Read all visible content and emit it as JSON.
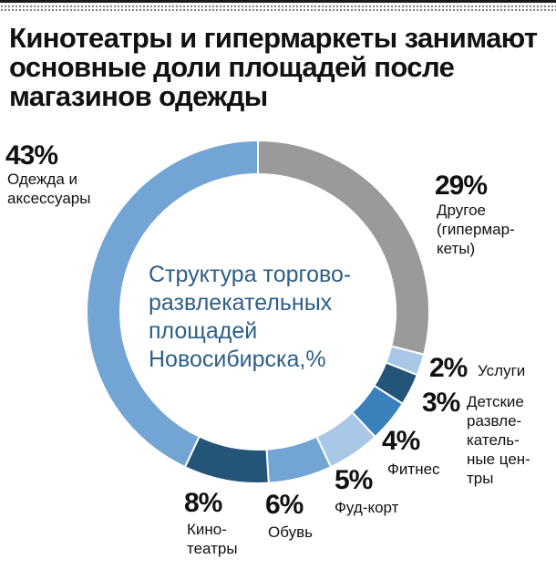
{
  "title": "Кинотеатры и гипермаркеты занимают основные доли площадей после магазинов одежды",
  "chart_data": {
    "type": "pie",
    "variant": "donut",
    "start": "top, clockwise",
    "center_text": [
      "Структура торгово-",
      "развлекательных",
      "площадей",
      "Новосибирска,%"
    ],
    "slices": [
      {
        "name": "Другое (гипермаркеты)",
        "value": 29,
        "pct_label": "29%",
        "label_lines": [
          "Другое",
          "(гипермар-",
          "кеты)"
        ],
        "color": "#9a9a9a"
      },
      {
        "name": "Услуги",
        "value": 2,
        "pct_label": "2%",
        "label_lines": [
          "Услуги"
        ],
        "color": "#a9c7e6"
      },
      {
        "name": "Детские развлекательные центры",
        "value": 3,
        "pct_label": "3%",
        "label_lines": [
          "Детские",
          "развле-",
          "катель-",
          "ные цен-",
          "тры"
        ],
        "color": "#245478"
      },
      {
        "name": "Фитнес",
        "value": 4,
        "pct_label": "4%",
        "label_lines": [
          "Фитнес"
        ],
        "color": "#3a80ba"
      },
      {
        "name": "Фуд-корт",
        "value": 5,
        "pct_label": "5%",
        "label_lines": [
          "Фуд-корт"
        ],
        "color": "#a9c7e6"
      },
      {
        "name": "Обувь",
        "value": 6,
        "pct_label": "6%",
        "label_lines": [
          "Обувь"
        ],
        "color": "#72a5d4"
      },
      {
        "name": "Кинотеатры",
        "value": 8,
        "pct_label": "8%",
        "label_lines": [
          "Кино-",
          "театры"
        ],
        "color": "#245478"
      },
      {
        "name": "Одежда и аксессуары",
        "value": 43,
        "pct_label": "43%",
        "label_lines": [
          "Одежда и",
          "аксессуары"
        ],
        "color": "#72a5d4"
      }
    ]
  }
}
